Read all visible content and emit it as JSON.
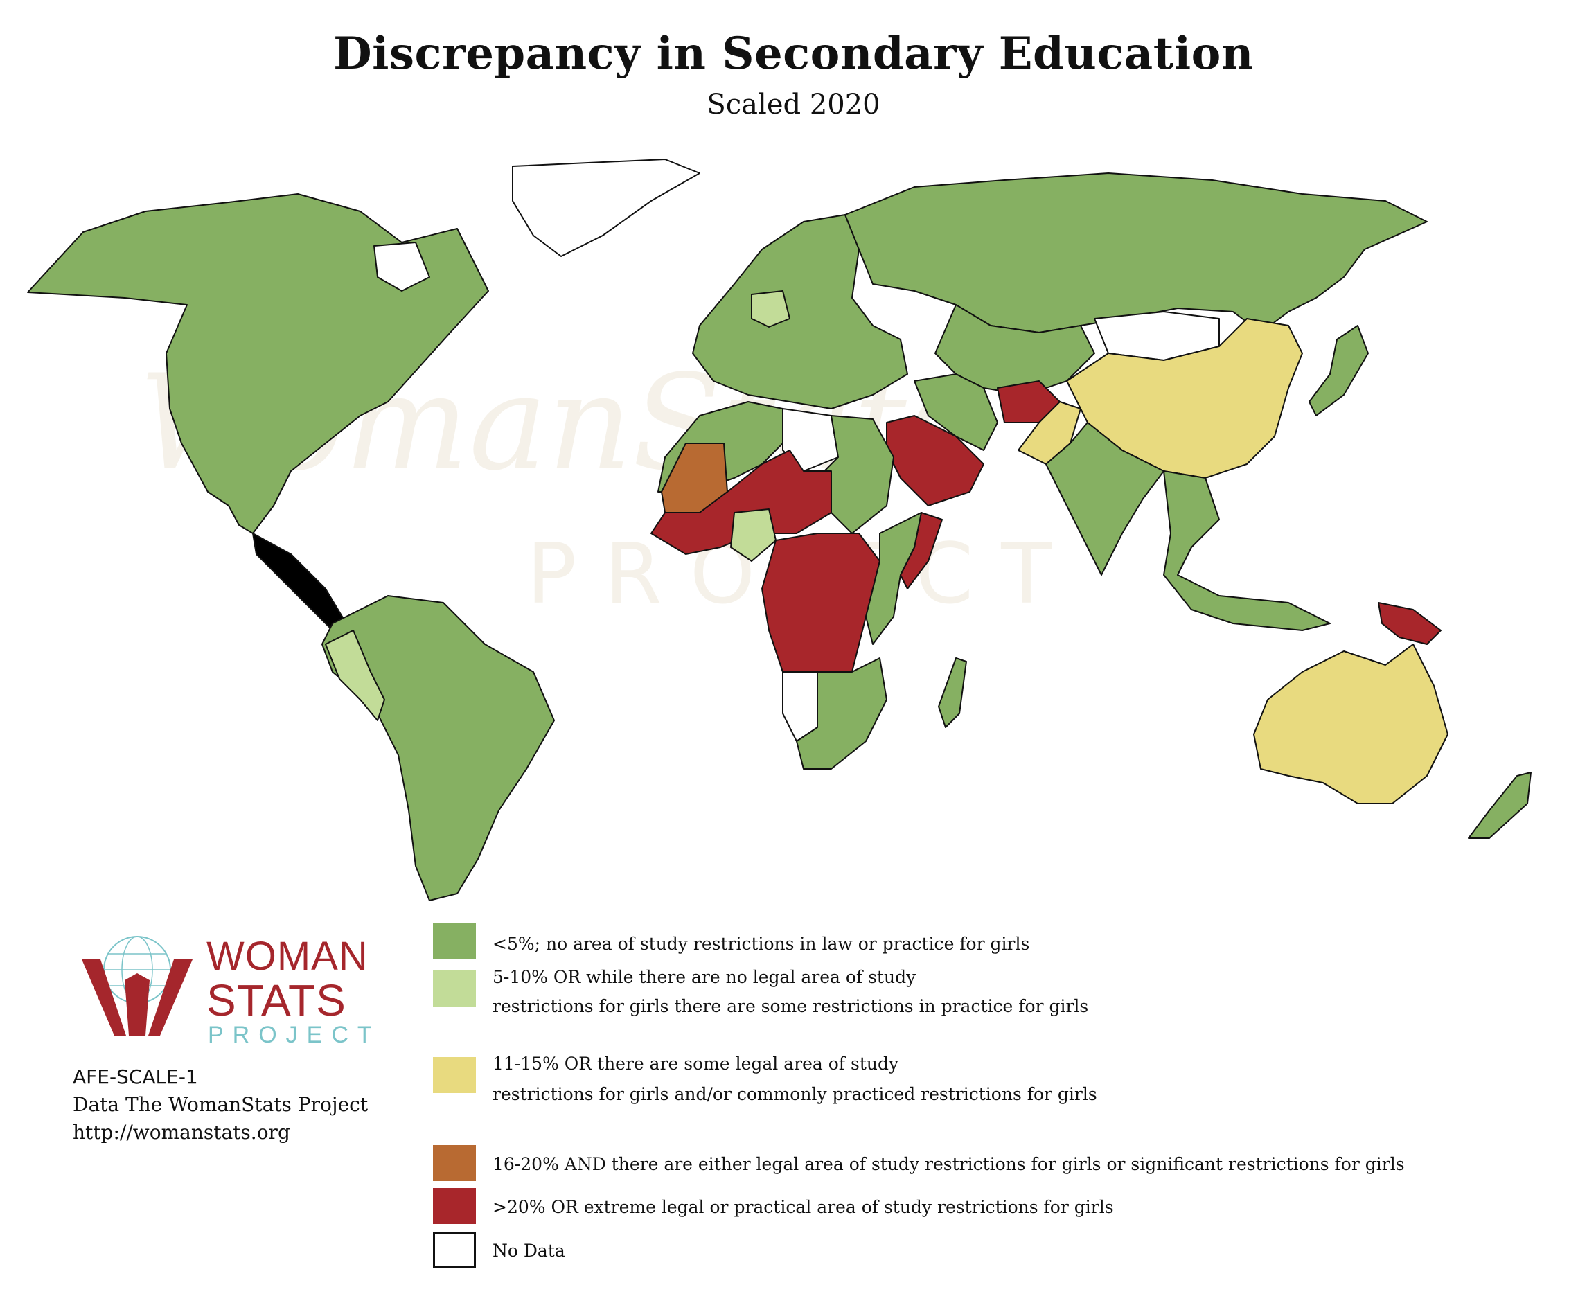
{
  "title": "Discrepancy in Secondary Education",
  "subtitle": "Scaled 2020",
  "colors": {
    "green": "#86b062",
    "light_green": "#c2dc98",
    "yellow": "#e8da7f",
    "orange": "#b86a32",
    "red": "#a8262b",
    "no_data": "#ffffff",
    "border": "#111111"
  },
  "legend": [
    {
      "color": "#86b062",
      "lines": [
        "<5%; no area of study restrictions in law or practice for girls"
      ]
    },
    {
      "color": "#c2dc98",
      "lines": [
        "5-10% OR while there are no legal area of study",
        "restrictions for girls there are some restrictions in practice for girls"
      ]
    },
    {
      "color": "#e8da7f",
      "lines": [
        "11-15% OR there are some legal area of study",
        "restrictions for girls and/or commonly practiced restrictions for girls"
      ]
    },
    {
      "color": "#b86a32",
      "lines": [
        "16-20% AND there are either legal area of study restrictions for girls or significant restrictions for girls"
      ]
    },
    {
      "color": "#a8262b",
      "lines": [
        ">20% OR extreme legal or practical area of study restrictions for girls"
      ]
    },
    {
      "color": "#ffffff",
      "lines": [
        "No Data"
      ]
    }
  ],
  "logo": {
    "word1": "WOMAN",
    "word2": "STATS",
    "word3": "PROJECT",
    "icon": "globe-hands-icon"
  },
  "source": {
    "code": "AFE-SCALE-1",
    "credit": "Data The WomanStats Project",
    "url": "http://womanstats.org"
  },
  "watermark": {
    "word": "WomanStats",
    "sub": "PROJECT"
  },
  "regions": [
    {
      "name": "north-america",
      "category": "green"
    },
    {
      "name": "greenland",
      "category": "no_data"
    },
    {
      "name": "south-america",
      "category": "green"
    },
    {
      "name": "peru",
      "category": "light_green"
    },
    {
      "name": "europe",
      "category": "green"
    },
    {
      "name": "germany",
      "category": "light_green"
    },
    {
      "name": "russia",
      "category": "green"
    },
    {
      "name": "central-asia",
      "category": "green"
    },
    {
      "name": "china",
      "category": "yellow"
    },
    {
      "name": "mongolia",
      "category": "no_data"
    },
    {
      "name": "india",
      "category": "green"
    },
    {
      "name": "pakistan",
      "category": "yellow"
    },
    {
      "name": "afghanistan",
      "category": "red"
    },
    {
      "name": "iran",
      "category": "green"
    },
    {
      "name": "saudi-arabia",
      "category": "red"
    },
    {
      "name": "north-africa",
      "category": "green"
    },
    {
      "name": "libya",
      "category": "no_data"
    },
    {
      "name": "mali",
      "category": "orange"
    },
    {
      "name": "sahel",
      "category": "red"
    },
    {
      "name": "nigeria",
      "category": "light_green"
    },
    {
      "name": "sudan",
      "category": "green"
    },
    {
      "name": "central-africa",
      "category": "red"
    },
    {
      "name": "somalia",
      "category": "red"
    },
    {
      "name": "east-africa",
      "category": "green"
    },
    {
      "name": "southern-africa",
      "category": "green"
    },
    {
      "name": "namibia",
      "category": "no_data"
    },
    {
      "name": "madagascar",
      "category": "green"
    },
    {
      "name": "southeast-asia",
      "category": "green"
    },
    {
      "name": "papua-new-guinea",
      "category": "red"
    },
    {
      "name": "australia",
      "category": "yellow"
    },
    {
      "name": "new-zealand",
      "category": "green"
    },
    {
      "name": "japan",
      "category": "green"
    }
  ]
}
